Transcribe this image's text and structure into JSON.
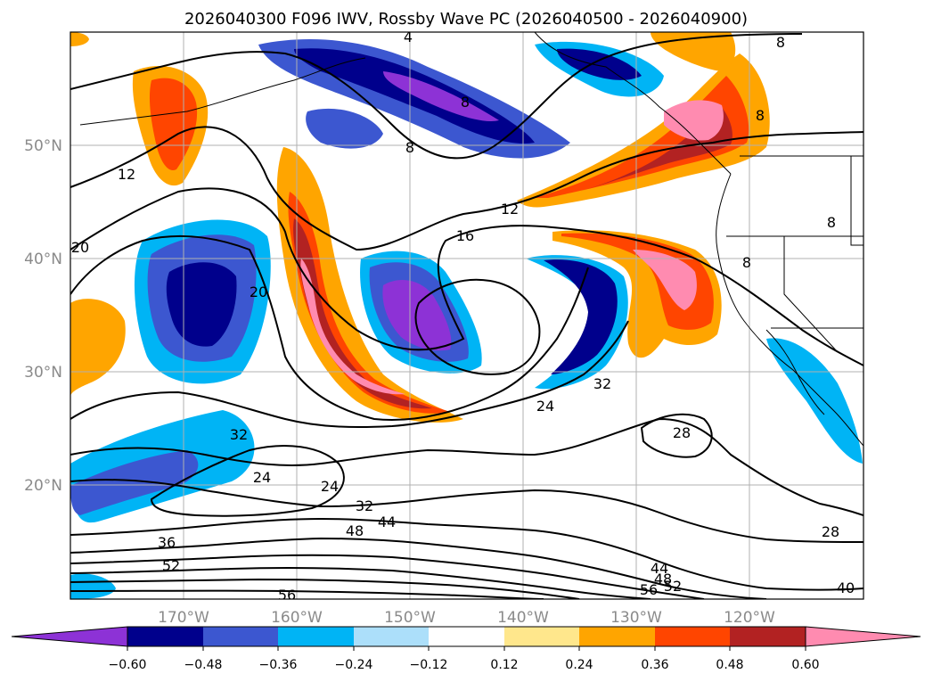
{
  "title": "2026040300 F096 IWV, Rossby Wave PC (2026040500 - 2026040900)",
  "map": {
    "lon_labels": [
      "170°W",
      "160°W",
      "150°W",
      "140°W",
      "130°W",
      "120°W"
    ],
    "lat_labels": [
      "50°N",
      "40°N",
      "30°N",
      "20°N"
    ],
    "contour_labels": [
      "4",
      "8",
      "8",
      "8",
      "8",
      "8",
      "12",
      "12",
      "16",
      "20",
      "20",
      "24",
      "24",
      "24",
      "28",
      "28",
      "32",
      "32",
      "32",
      "36",
      "40",
      "44",
      "44",
      "48",
      "48",
      "52",
      "52",
      "56",
      "56",
      "8"
    ]
  },
  "colorbar": {
    "ticks": [
      "−0.60",
      "−0.48",
      "−0.36",
      "−0.24",
      "−0.12",
      "0.12",
      "0.24",
      "0.36",
      "0.48",
      "0.60"
    ],
    "colors": [
      "#8d32d6",
      "#00008c",
      "#3c57d0",
      "#00b4f5",
      "#acdffa",
      "#ffffff",
      "#ffe78c",
      "#ffa500",
      "#ff4500",
      "#b22222",
      "#ff8bb0"
    ]
  }
}
